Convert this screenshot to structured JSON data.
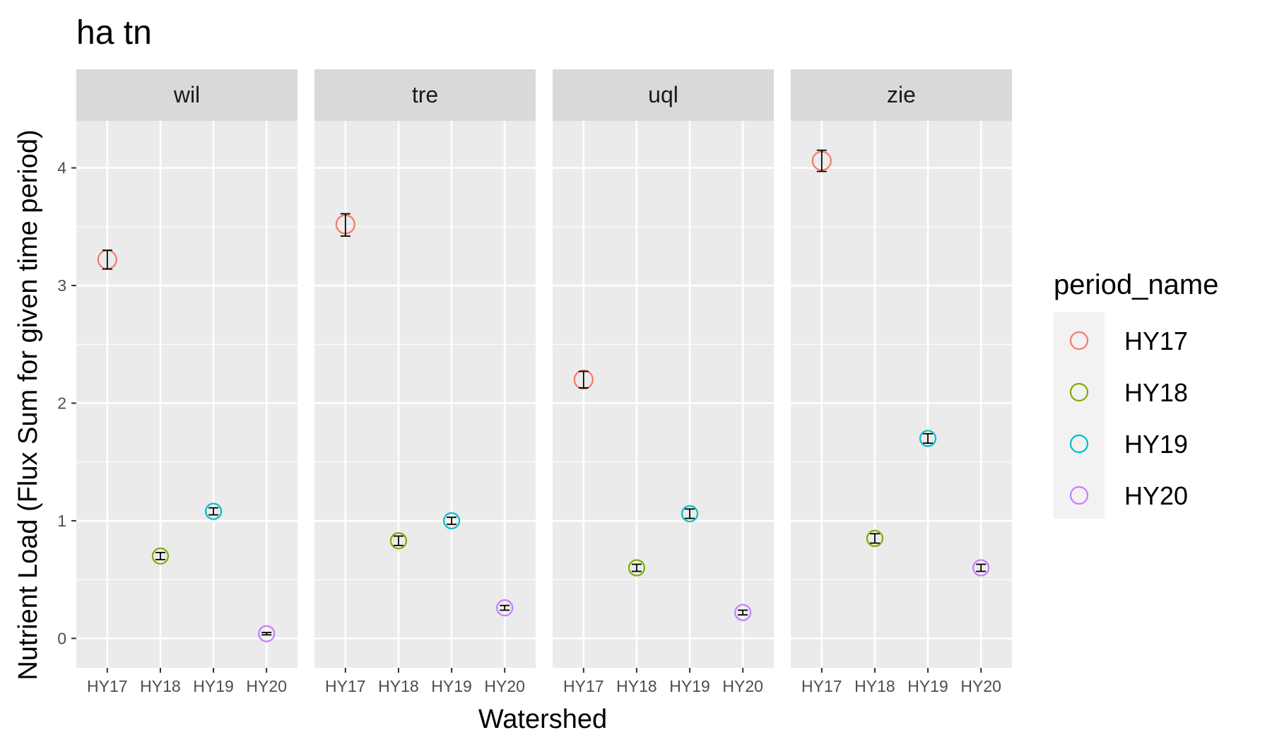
{
  "chart_data": {
    "type": "scatter",
    "title": "ha tn",
    "xlabel": "Watershed",
    "ylabel": "Nutrient Load (Flux Sum for given time period)",
    "ylim": [
      -0.25,
      4.4
    ],
    "yticks": [
      0,
      1,
      2,
      3,
      4
    ],
    "categories": [
      "HY17",
      "HY18",
      "HY19",
      "HY20"
    ],
    "grid": true,
    "legend": {
      "title": "period_name",
      "position": "right",
      "entries": [
        "HY17",
        "HY18",
        "HY19",
        "HY20"
      ]
    },
    "colors": {
      "HY17": "#F8766D",
      "HY18": "#7CAE00",
      "HY19": "#00BFC4",
      "HY20": "#C77CFF"
    },
    "facets": [
      {
        "name": "wil",
        "points": [
          {
            "x": "HY17",
            "y": 3.22,
            "lo": 3.14,
            "hi": 3.3
          },
          {
            "x": "HY18",
            "y": 0.7,
            "lo": 0.67,
            "hi": 0.73
          },
          {
            "x": "HY19",
            "y": 1.08,
            "lo": 1.05,
            "hi": 1.11
          },
          {
            "x": "HY20",
            "y": 0.04,
            "lo": 0.03,
            "hi": 0.05
          }
        ]
      },
      {
        "name": "tre",
        "points": [
          {
            "x": "HY17",
            "y": 3.52,
            "lo": 3.42,
            "hi": 3.61
          },
          {
            "x": "HY18",
            "y": 0.83,
            "lo": 0.79,
            "hi": 0.87
          },
          {
            "x": "HY19",
            "y": 1.0,
            "lo": 0.97,
            "hi": 1.03
          },
          {
            "x": "HY20",
            "y": 0.26,
            "lo": 0.24,
            "hi": 0.28
          }
        ]
      },
      {
        "name": "uql",
        "points": [
          {
            "x": "HY17",
            "y": 2.2,
            "lo": 2.13,
            "hi": 2.27
          },
          {
            "x": "HY18",
            "y": 0.6,
            "lo": 0.57,
            "hi": 0.63
          },
          {
            "x": "HY19",
            "y": 1.06,
            "lo": 1.02,
            "hi": 1.1
          },
          {
            "x": "HY20",
            "y": 0.22,
            "lo": 0.2,
            "hi": 0.24
          }
        ]
      },
      {
        "name": "zie",
        "points": [
          {
            "x": "HY17",
            "y": 4.06,
            "lo": 3.97,
            "hi": 4.15
          },
          {
            "x": "HY18",
            "y": 0.85,
            "lo": 0.81,
            "hi": 0.89
          },
          {
            "x": "HY19",
            "y": 1.7,
            "lo": 1.66,
            "hi": 1.74
          },
          {
            "x": "HY20",
            "y": 0.6,
            "lo": 0.57,
            "hi": 0.63
          }
        ]
      }
    ]
  }
}
